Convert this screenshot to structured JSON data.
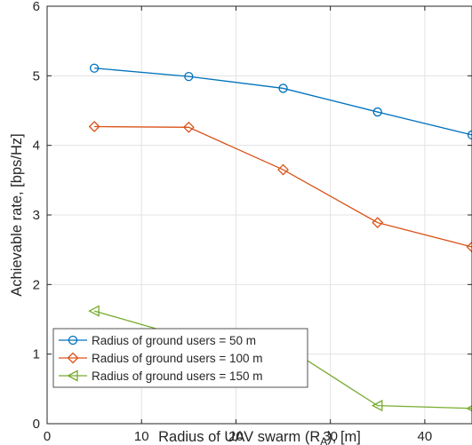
{
  "chart_data": {
    "type": "line",
    "title": "",
    "xlabel": {
      "main": "Radius of UAV swarm (R",
      "sub": "A",
      "tail": "), [m]"
    },
    "ylabel": "Achievable rate, [bps/Hz]",
    "xlim": [
      0,
      45
    ],
    "ylim": [
      0,
      6
    ],
    "xticks": [
      "0",
      "10",
      "20",
      "30",
      "40"
    ],
    "xtick_values": [
      0,
      10,
      20,
      30,
      40
    ],
    "yticks": [
      "0",
      "1",
      "2",
      "3",
      "4",
      "5",
      "6"
    ],
    "ytick_values": [
      0,
      1,
      2,
      3,
      4,
      5,
      6
    ],
    "grid": true,
    "legend_position": "bottom-left",
    "x": [
      5,
      15,
      25,
      35,
      45
    ],
    "series": [
      {
        "name": "Radius of ground users = 50 m",
        "marker": "circle",
        "color": "#0072BD",
        "values": [
          5.11,
          4.99,
          4.82,
          4.48,
          4.15
        ]
      },
      {
        "name": "Radius of ground users = 100 m",
        "marker": "diamond",
        "color": "#D95319",
        "values": [
          4.27,
          4.26,
          3.65,
          2.89,
          2.54
        ]
      },
      {
        "name": "Radius of ground users = 150 m",
        "marker": "triangle-left",
        "color": "#77AC30",
        "values": [
          1.62,
          1.23,
          1.13,
          0.26,
          0.22
        ]
      }
    ]
  }
}
